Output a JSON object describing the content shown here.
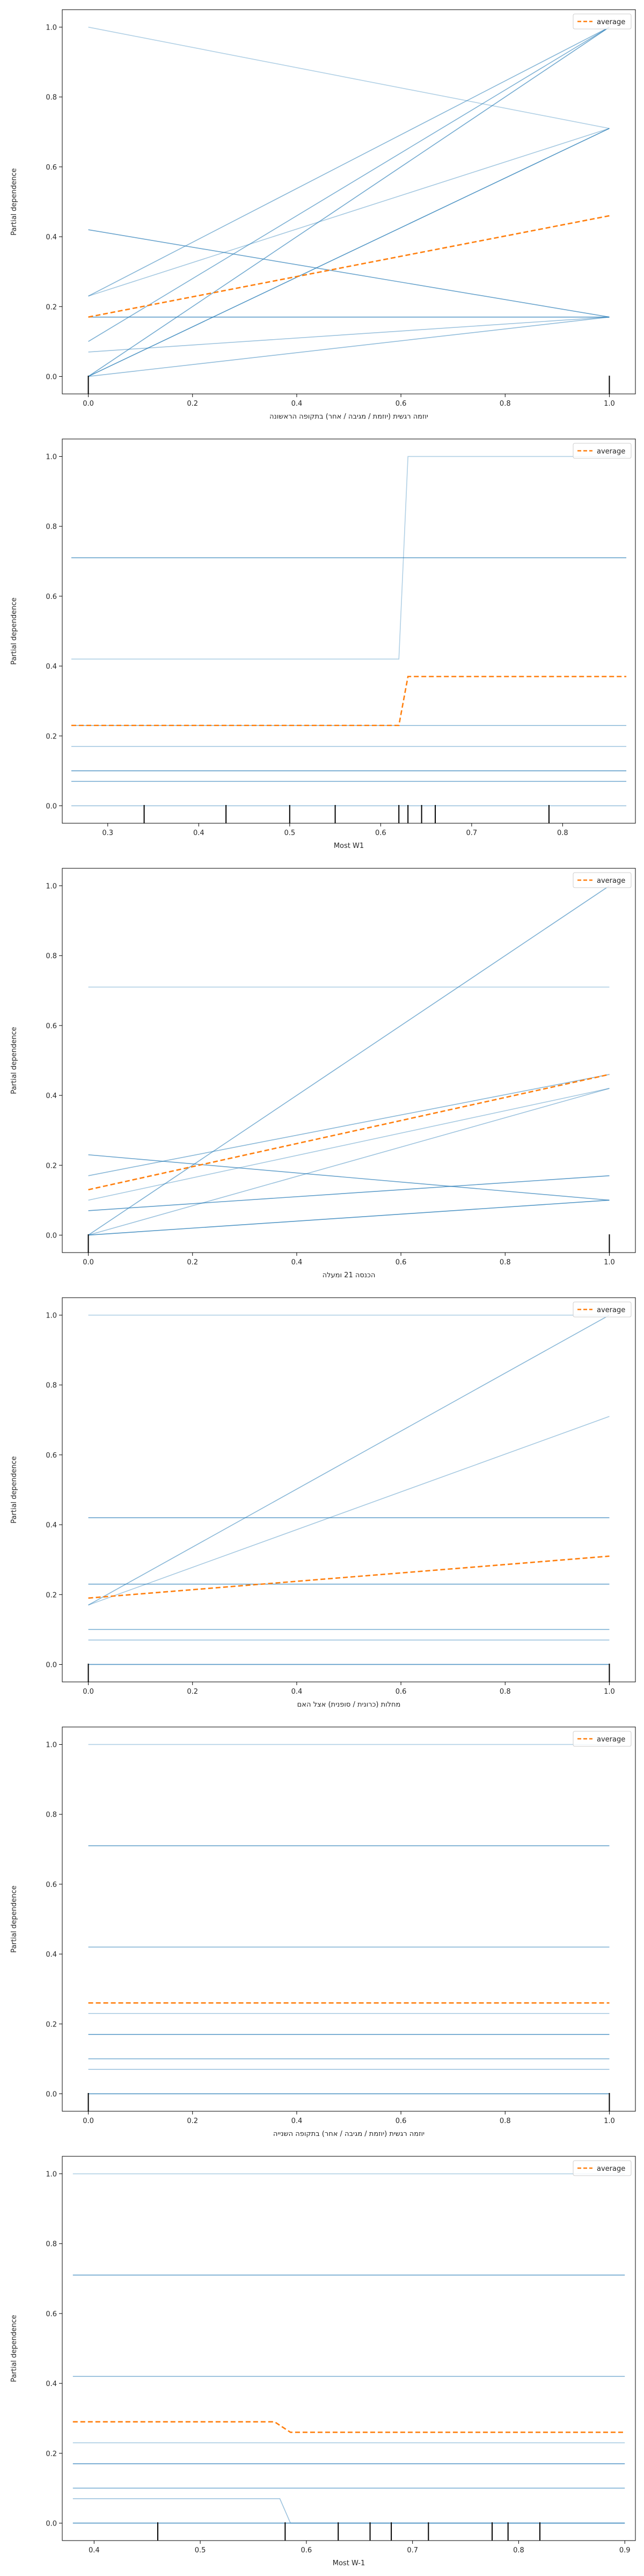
{
  "chart_data": [
    {
      "type": "line",
      "xlabel": "יוזמה רגשית (יוזמת / מגיבה / אחר) בתקופה הראשונה",
      "ylabel": "Partial dependence",
      "xlim": [
        -0.05,
        1.05
      ],
      "ylim": [
        -0.05,
        1.05
      ],
      "xticks": [
        0.0,
        0.2,
        0.4,
        0.6,
        0.8,
        1.0
      ],
      "yticks": [
        0.0,
        0.2,
        0.4,
        0.6,
        0.8,
        1.0
      ],
      "legend": {
        "label": "average",
        "position": "top-right"
      },
      "ice_color": "#1f77b4",
      "average_color": "#ff7f0e",
      "ice_lines": [
        {
          "x": [
            0,
            1
          ],
          "y": [
            1.0,
            0.71
          ]
        },
        {
          "x": [
            0,
            1
          ],
          "y": [
            0.42,
            0.17
          ]
        },
        {
          "x": [
            0,
            1
          ],
          "y": [
            0.23,
            1.0
          ]
        },
        {
          "x": [
            0,
            1
          ],
          "y": [
            0.23,
            0.71
          ]
        },
        {
          "x": [
            0,
            1
          ],
          "y": [
            0.17,
            0.17
          ]
        },
        {
          "x": [
            0,
            1
          ],
          "y": [
            0.1,
            1.0
          ]
        },
        {
          "x": [
            0,
            1
          ],
          "y": [
            0.07,
            0.17
          ]
        },
        {
          "x": [
            0,
            1
          ],
          "y": [
            0.0,
            0.71
          ]
        },
        {
          "x": [
            0,
            1
          ],
          "y": [
            0.0,
            1.0
          ]
        },
        {
          "x": [
            0,
            1
          ],
          "y": [
            0.0,
            0.17
          ]
        }
      ],
      "average": {
        "x": [
          0,
          1
        ],
        "y": [
          0.17,
          0.46
        ]
      },
      "rug": [
        0.0,
        1.0
      ]
    },
    {
      "type": "line",
      "xlabel": "Most W1",
      "ylabel": "Partial dependence",
      "xlim": [
        0.25,
        0.88
      ],
      "ylim": [
        -0.05,
        1.05
      ],
      "xticks": [
        0.3,
        0.4,
        0.5,
        0.6,
        0.7,
        0.8
      ],
      "yticks": [
        0.0,
        0.2,
        0.4,
        0.6,
        0.8,
        1.0
      ],
      "legend": {
        "label": "average",
        "position": "top-right"
      },
      "ice_color": "#1f77b4",
      "average_color": "#ff7f0e",
      "ice_lines": [
        {
          "x": [
            0.26,
            0.62,
            0.63,
            0.87
          ],
          "y": [
            0.42,
            0.42,
            1.0,
            1.0
          ]
        },
        {
          "x": [
            0.26,
            0.87
          ],
          "y": [
            0.71,
            0.71
          ]
        },
        {
          "x": [
            0.26,
            0.87
          ],
          "y": [
            0.23,
            0.23
          ]
        },
        {
          "x": [
            0.26,
            0.87
          ],
          "y": [
            0.17,
            0.17
          ]
        },
        {
          "x": [
            0.26,
            0.87
          ],
          "y": [
            0.1,
            0.1
          ]
        },
        {
          "x": [
            0.26,
            0.87
          ],
          "y": [
            0.07,
            0.07
          ]
        },
        {
          "x": [
            0.26,
            0.87
          ],
          "y": [
            0.0,
            0.0
          ]
        }
      ],
      "average": {
        "x": [
          0.26,
          0.62,
          0.63,
          0.87
        ],
        "y": [
          0.23,
          0.23,
          0.37,
          0.37
        ]
      },
      "rug": [
        0.34,
        0.43,
        0.5,
        0.55,
        0.62,
        0.63,
        0.645,
        0.66,
        0.785
      ]
    },
    {
      "type": "line",
      "xlabel": "הכנסה 21 ומעלה",
      "ylabel": "Partial dependence",
      "xlim": [
        -0.05,
        1.05
      ],
      "ylim": [
        -0.05,
        1.05
      ],
      "xticks": [
        0.0,
        0.2,
        0.4,
        0.6,
        0.8,
        1.0
      ],
      "yticks": [
        0.0,
        0.2,
        0.4,
        0.6,
        0.8,
        1.0
      ],
      "legend": {
        "label": "average",
        "position": "top-right"
      },
      "ice_color": "#1f77b4",
      "average_color": "#ff7f0e",
      "ice_lines": [
        {
          "x": [
            0,
            1
          ],
          "y": [
            0.71,
            0.71
          ]
        },
        {
          "x": [
            0,
            1
          ],
          "y": [
            0.23,
            0.1
          ]
        },
        {
          "x": [
            0,
            1
          ],
          "y": [
            0.17,
            0.46
          ]
        },
        {
          "x": [
            0,
            1
          ],
          "y": [
            0.1,
            0.42
          ]
        },
        {
          "x": [
            0,
            1
          ],
          "y": [
            0.07,
            0.17
          ]
        },
        {
          "x": [
            0,
            1
          ],
          "y": [
            0.0,
            1.0
          ]
        },
        {
          "x": [
            0,
            1
          ],
          "y": [
            0.0,
            0.42
          ]
        },
        {
          "x": [
            0,
            1
          ],
          "y": [
            0.0,
            0.1
          ]
        }
      ],
      "average": {
        "x": [
          0,
          1
        ],
        "y": [
          0.13,
          0.46
        ]
      },
      "rug": [
        0.0,
        1.0
      ]
    },
    {
      "type": "line",
      "xlabel": "מחלות (כרונית / סופנית) אצל האם",
      "ylabel": "Partial dependence",
      "xlim": [
        -0.05,
        1.05
      ],
      "ylim": [
        -0.05,
        1.05
      ],
      "xticks": [
        0.0,
        0.2,
        0.4,
        0.6,
        0.8,
        1.0
      ],
      "yticks": [
        0.0,
        0.2,
        0.4,
        0.6,
        0.8,
        1.0
      ],
      "legend": {
        "label": "average",
        "position": "top-right"
      },
      "ice_color": "#1f77b4",
      "average_color": "#ff7f0e",
      "ice_lines": [
        {
          "x": [
            0,
            1
          ],
          "y": [
            1.0,
            1.0
          ]
        },
        {
          "x": [
            0,
            1
          ],
          "y": [
            0.42,
            0.42
          ]
        },
        {
          "x": [
            0,
            1
          ],
          "y": [
            0.17,
            1.0
          ]
        },
        {
          "x": [
            0,
            1
          ],
          "y": [
            0.17,
            0.71
          ]
        },
        {
          "x": [
            0,
            1
          ],
          "y": [
            0.23,
            0.23
          ]
        },
        {
          "x": [
            0,
            1
          ],
          "y": [
            0.1,
            0.1
          ]
        },
        {
          "x": [
            0,
            1
          ],
          "y": [
            0.07,
            0.07
          ]
        },
        {
          "x": [
            0,
            1
          ],
          "y": [
            0.0,
            0.0
          ]
        }
      ],
      "average": {
        "x": [
          0,
          1
        ],
        "y": [
          0.19,
          0.31
        ]
      },
      "rug": [
        0.0,
        1.0
      ]
    },
    {
      "type": "line",
      "xlabel": "יוזמה רגשית (יוזמת / מגיבה / אחר) בתקופה השנייה",
      "ylabel": "Partial dependence",
      "xlim": [
        -0.05,
        1.05
      ],
      "ylim": [
        -0.05,
        1.05
      ],
      "xticks": [
        0.0,
        0.2,
        0.4,
        0.6,
        0.8,
        1.0
      ],
      "yticks": [
        0.0,
        0.2,
        0.4,
        0.6,
        0.8,
        1.0
      ],
      "legend": {
        "label": "average",
        "position": "top-right"
      },
      "ice_color": "#1f77b4",
      "average_color": "#ff7f0e",
      "ice_lines": [
        {
          "x": [
            0,
            1
          ],
          "y": [
            1.0,
            1.0
          ]
        },
        {
          "x": [
            0,
            1
          ],
          "y": [
            0.71,
            0.71
          ]
        },
        {
          "x": [
            0,
            1
          ],
          "y": [
            0.42,
            0.42
          ]
        },
        {
          "x": [
            0,
            1
          ],
          "y": [
            0.23,
            0.23
          ]
        },
        {
          "x": [
            0,
            1
          ],
          "y": [
            0.17,
            0.17
          ]
        },
        {
          "x": [
            0,
            1
          ],
          "y": [
            0.1,
            0.1
          ]
        },
        {
          "x": [
            0,
            1
          ],
          "y": [
            0.07,
            0.07
          ]
        },
        {
          "x": [
            0,
            1
          ],
          "y": [
            0.0,
            0.0
          ]
        }
      ],
      "average": {
        "x": [
          0,
          1
        ],
        "y": [
          0.26,
          0.26
        ]
      },
      "rug": [
        0.0,
        1.0
      ]
    },
    {
      "type": "line",
      "xlabel": "Most W-1",
      "ylabel": "Partial dependence",
      "xlim": [
        0.37,
        0.91
      ],
      "ylim": [
        -0.05,
        1.05
      ],
      "xticks": [
        0.4,
        0.5,
        0.6,
        0.7,
        0.8,
        0.9
      ],
      "yticks": [
        0.0,
        0.2,
        0.4,
        0.6,
        0.8,
        1.0
      ],
      "legend": {
        "label": "average",
        "position": "top-right"
      },
      "ice_color": "#1f77b4",
      "average_color": "#ff7f0e",
      "ice_lines": [
        {
          "x": [
            0.38,
            0.9
          ],
          "y": [
            1.0,
            1.0
          ]
        },
        {
          "x": [
            0.38,
            0.9
          ],
          "y": [
            0.71,
            0.71
          ]
        },
        {
          "x": [
            0.38,
            0.9
          ],
          "y": [
            0.42,
            0.42
          ]
        },
        {
          "x": [
            0.38,
            0.9
          ],
          "y": [
            0.23,
            0.23
          ]
        },
        {
          "x": [
            0.38,
            0.9
          ],
          "y": [
            0.17,
            0.17
          ]
        },
        {
          "x": [
            0.38,
            0.9
          ],
          "y": [
            0.1,
            0.1
          ]
        },
        {
          "x": [
            0.38,
            0.575,
            0.585,
            0.9
          ],
          "y": [
            0.07,
            0.07,
            0.0,
            0.0
          ]
        },
        {
          "x": [
            0.38,
            0.9
          ],
          "y": [
            0.0,
            0.0
          ]
        }
      ],
      "average": {
        "x": [
          0.38,
          0.57,
          0.585,
          0.9
        ],
        "y": [
          0.29,
          0.29,
          0.26,
          0.26
        ]
      },
      "rug": [
        0.46,
        0.58,
        0.63,
        0.66,
        0.68,
        0.715,
        0.775,
        0.79,
        0.82
      ]
    }
  ]
}
